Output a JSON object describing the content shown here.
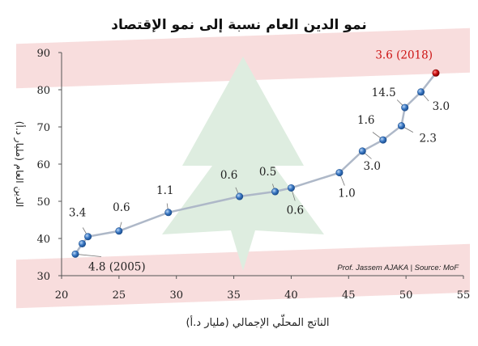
{
  "chart_data": {
    "type": "scatter",
    "title": "نمو الدين العام نسبة إلى نمو الإقتصاد",
    "xlabel": "الناتج المحلّي الإجمالي (مليار د.أ)",
    "ylabel": "الدين العام (مليار د.أ)",
    "credit": "Prof. Jassem AJAKA | Source: MoF",
    "xlim": [
      20,
      55
    ],
    "ylim": [
      30,
      90
    ],
    "xticks": [
      "20",
      "25",
      "30",
      "35",
      "40",
      "45",
      "50",
      "55"
    ],
    "yticks": [
      "30",
      "40",
      "50",
      "60",
      "70",
      "80",
      "90"
    ],
    "grid": false,
    "points": [
      {
        "x": 21.2,
        "y": 35.8
      },
      {
        "x": 21.8,
        "y": 38.6
      },
      {
        "x": 22.3,
        "y": 40.5
      },
      {
        "x": 25.0,
        "y": 42.0
      },
      {
        "x": 29.3,
        "y": 47.0
      },
      {
        "x": 35.5,
        "y": 51.3
      },
      {
        "x": 38.6,
        "y": 52.6
      },
      {
        "x": 40.0,
        "y": 53.6
      },
      {
        "x": 44.2,
        "y": 57.7
      },
      {
        "x": 46.2,
        "y": 63.5
      },
      {
        "x": 48.0,
        "y": 66.5
      },
      {
        "x": 49.6,
        "y": 70.3
      },
      {
        "x": 49.9,
        "y": 75.2
      },
      {
        "x": 51.3,
        "y": 79.4
      },
      {
        "x": 52.6,
        "y": 84.5
      }
    ],
    "highlight_color": "#cc1111",
    "point_color": "#3a78c4",
    "line_color": "#aeb8c8",
    "annotations": [
      {
        "text": "4.8 (2005)",
        "point": 0
      },
      {
        "text": "3.4",
        "point": 2
      },
      {
        "text": "0.6",
        "point": 3
      },
      {
        "text": "1.1",
        "point": 4
      },
      {
        "text": "0.6",
        "point": 5
      },
      {
        "text": "0.5",
        "point": 6
      },
      {
        "text": "0.6",
        "point": 7
      },
      {
        "text": "1.0",
        "point": 8
      },
      {
        "text": "3.0",
        "point": 9
      },
      {
        "text": "1.6",
        "point": 10
      },
      {
        "text": "2.3",
        "point": 11
      },
      {
        "text": "14.5",
        "point": 12
      },
      {
        "text": "3.0",
        "point": 13
      },
      {
        "text": "3.6 (2018)",
        "point": 14
      }
    ]
  }
}
